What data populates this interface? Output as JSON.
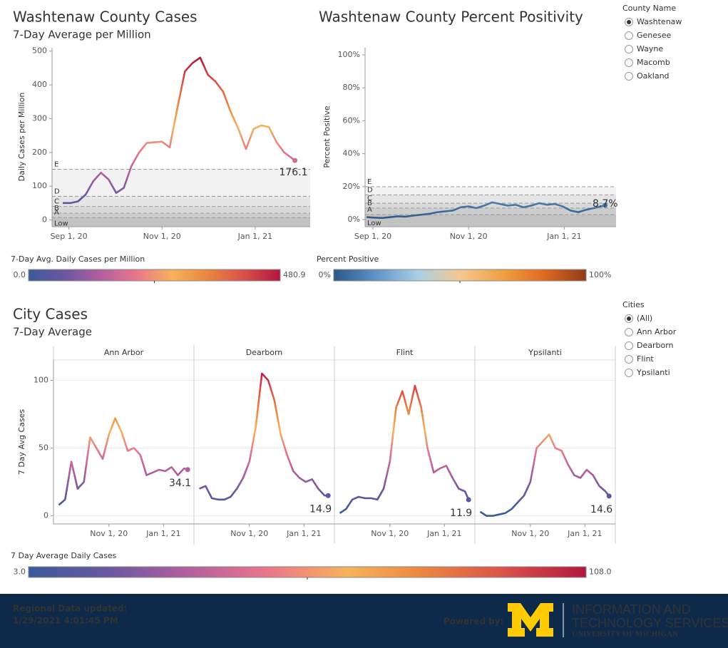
{
  "chart_data": [
    {
      "type": "line",
      "title": "Washtenaw County Cases",
      "subtitle": "7-Day Average per Million",
      "y_label": "Daily Cases per Million",
      "x": [
        "2020-08-28",
        "2020-09-02",
        "2020-09-07",
        "2020-09-12",
        "2020-09-17",
        "2020-09-22",
        "2020-09-27",
        "2020-10-02",
        "2020-10-07",
        "2020-10-12",
        "2020-10-17",
        "2020-10-22",
        "2020-10-27",
        "2020-11-01",
        "2020-11-06",
        "2020-11-11",
        "2020-11-16",
        "2020-11-21",
        "2020-11-26",
        "2020-12-01",
        "2020-12-06",
        "2020-12-11",
        "2020-12-16",
        "2020-12-21",
        "2020-12-26",
        "2020-12-31",
        "2021-01-05",
        "2021-01-10",
        "2021-01-15",
        "2021-01-20",
        "2021-01-27"
      ],
      "xlim": [
        "2020-08-21",
        "2021-02-06"
      ],
      "xticks": [
        {
          "value": "2020-09-01",
          "label": "Sep 1, 20"
        },
        {
          "value": "2020-11-01",
          "label": "Nov 1, 20"
        },
        {
          "value": "2021-01-01",
          "label": "Jan 1, 21"
        }
      ],
      "ylim": [
        -20,
        510
      ],
      "yticks": [
        0,
        100,
        200,
        300,
        400,
        500
      ],
      "series": [
        {
          "values": [
            50,
            50,
            55,
            75,
            115,
            140,
            120,
            80,
            95,
            160,
            200,
            228,
            230,
            232,
            215,
            330,
            440,
            465,
            480.9,
            430,
            410,
            380,
            320,
            270,
            210,
            270,
            280,
            275,
            230,
            200,
            176.1
          ]
        }
      ],
      "reference_bands": [
        {
          "value": 150,
          "label": "E"
        },
        {
          "value": 70,
          "label": "D"
        },
        {
          "value": 40,
          "label": "C"
        },
        {
          "value": 20,
          "label": "B"
        },
        {
          "value": 7,
          "label": "A"
        },
        {
          "value": 0,
          "label": "Low"
        }
      ],
      "color_title": "7-Day Avg. Daily Cases per Million",
      "color_range": [
        {
          "value": 0,
          "label": "0.0"
        },
        {
          "value": 480.9,
          "label": "480.9"
        }
      ],
      "colorscale": [
        "#3b5b9a",
        "#6b57a0",
        "#b25f9f",
        "#e9768a",
        "#f7b25a",
        "#ea8440",
        "#d9504a",
        "#b3163f"
      ]
    },
    {
      "type": "line",
      "title": "Washtenaw County Percent Positivity",
      "y_label": "Percent Positive",
      "x": [
        "2020-08-28",
        "2020-09-02",
        "2020-09-07",
        "2020-09-12",
        "2020-09-17",
        "2020-09-22",
        "2020-09-27",
        "2020-10-02",
        "2020-10-07",
        "2020-10-12",
        "2020-10-17",
        "2020-10-22",
        "2020-10-27",
        "2020-11-01",
        "2020-11-06",
        "2020-11-11",
        "2020-11-16",
        "2020-11-21",
        "2020-11-26",
        "2020-12-01",
        "2020-12-06",
        "2020-12-11",
        "2020-12-16",
        "2020-12-21",
        "2020-12-26",
        "2020-12-31",
        "2021-01-05",
        "2021-01-10",
        "2021-01-15",
        "2021-01-20",
        "2021-01-27"
      ],
      "xlim": [
        "2020-08-27",
        "2021-02-03"
      ],
      "xticks": [
        {
          "value": "2020-09-01",
          "label": "Sep 1, 20"
        },
        {
          "value": "2020-11-01",
          "label": "Nov 1, 20"
        },
        {
          "value": "2021-01-01",
          "label": "Jan 1, 21"
        }
      ],
      "ylim": [
        -4.3,
        104.3
      ],
      "yticks": [
        {
          "value": 0,
          "label": "0%"
        },
        {
          "value": 20,
          "label": "20%"
        },
        {
          "value": 40,
          "label": "40%"
        },
        {
          "value": 60,
          "label": "60%"
        },
        {
          "value": 80,
          "label": "80%"
        },
        {
          "value": 100,
          "label": "100%"
        }
      ],
      "series": [
        {
          "values": [
            1.5,
            1.2,
            1.0,
            1.5,
            2.0,
            1.8,
            2.5,
            3.0,
            3.5,
            4.5,
            5.0,
            5.5,
            7.5,
            8.0,
            7.0,
            8.5,
            10.5,
            9.5,
            8.5,
            9.0,
            7.5,
            8.5,
            10.0,
            9.0,
            9.5,
            8.0,
            5.5,
            4.5,
            6.0,
            7.0,
            8.7
          ],
          "value_labels": [
            null,
            null,
            null,
            null,
            null,
            null,
            null,
            null,
            null,
            null,
            null,
            null,
            null,
            null,
            null,
            null,
            null,
            null,
            null,
            null,
            null,
            null,
            null,
            null,
            null,
            null,
            null,
            null,
            null,
            null,
            "8.7%"
          ]
        }
      ],
      "reference_bands": [
        {
          "value": 20,
          "label": "E"
        },
        {
          "value": 15,
          "label": "D"
        },
        {
          "value": 10,
          "label": "C"
        },
        {
          "value": 7,
          "label": "B"
        },
        {
          "value": 3,
          "label": "A"
        },
        {
          "value": 0,
          "label": "Low"
        }
      ],
      "color_title": "Percent Positive",
      "color_range": [
        {
          "value": 0,
          "label": "0%"
        },
        {
          "value": 100,
          "label": "100%"
        }
      ],
      "colorscale": [
        "#2c5688",
        "#5f93c6",
        "#a9cfe6",
        "#f4c891",
        "#f1a143",
        "#e16a1f",
        "#8f3b1a"
      ]
    },
    {
      "type": "line",
      "facets": true,
      "title": "City Cases",
      "subtitle": "7-Day Average",
      "y_label": "7 Day Avg Cases",
      "x": [
        "2020-09-06",
        "2020-09-13",
        "2020-09-20",
        "2020-09-27",
        "2020-10-04",
        "2020-10-11",
        "2020-10-18",
        "2020-10-25",
        "2020-11-01",
        "2020-11-08",
        "2020-11-15",
        "2020-11-22",
        "2020-11-29",
        "2020-12-06",
        "2020-12-13",
        "2020-12-20",
        "2020-12-27",
        "2021-01-03",
        "2021-01-10",
        "2021-01-17",
        "2021-01-24",
        "2021-01-28"
      ],
      "xlim": [
        "2020-08-31",
        "2021-02-04"
      ],
      "xticks": [
        {
          "value": "2020-11-01",
          "label": "Nov 1, 20"
        },
        {
          "value": "2021-01-01",
          "label": "Jan 1, 21"
        }
      ],
      "ylim": [
        -6,
        115
      ],
      "yticks": [
        0,
        50,
        100
      ],
      "grid": true,
      "series": [
        {
          "name": "Ann Arbor",
          "values": [
            8,
            12,
            40,
            20,
            25,
            58,
            50,
            42,
            60,
            72,
            62,
            48,
            50,
            45,
            30,
            32,
            34,
            33,
            36,
            30,
            35,
            34.1
          ]
        },
        {
          "name": "Dearborn",
          "values": [
            20,
            22,
            13,
            12,
            12,
            14,
            20,
            28,
            40,
            65,
            105,
            100,
            85,
            60,
            45,
            33,
            28,
            25,
            27,
            20,
            15,
            14.9
          ]
        },
        {
          "name": "Flint",
          "values": [
            2,
            5,
            12,
            14,
            13,
            13,
            12,
            20,
            40,
            80,
            92,
            75,
            96,
            80,
            50,
            32,
            35,
            37,
            28,
            20,
            18,
            11.9
          ]
        },
        {
          "name": "Ypsilanti",
          "values": [
            3,
            0,
            0,
            1,
            2,
            5,
            10,
            15,
            25,
            50,
            55,
            60,
            50,
            48,
            38,
            30,
            28,
            34,
            30,
            22,
            18,
            14.6
          ]
        }
      ],
      "color_title": "7 Day Average Daily Cases",
      "color_range": [
        {
          "value": 3,
          "label": "3.0"
        },
        {
          "value": 108,
          "label": "108.0"
        }
      ],
      "colorscale": [
        "#3b5b9a",
        "#6b57a0",
        "#b25f9f",
        "#e9768a",
        "#f7b25a",
        "#ea8440",
        "#d9504a",
        "#b3163f"
      ]
    }
  ],
  "filters": [
    {
      "title": "County Name",
      "options": [
        "Washtenaw",
        "Genesee",
        "Wayne",
        "Macomb",
        "Oakland"
      ],
      "selected": 0
    },
    {
      "title": "Cities",
      "options": [
        "(All)",
        "Ann Arbor",
        "Dearborn",
        "Flint",
        "Ypsilanti"
      ],
      "selected": 0
    }
  ],
  "footer": {
    "updated_label": "Regional Data updated:",
    "updated_time": "1/29/2021 4:01:45 PM",
    "powered_by": "Powered by:",
    "logo_line1": "INFORMATION AND",
    "logo_line2": "TECHNOLOGY SERVICES",
    "logo_line3": "UNIVERSITY OF MICHIGAN"
  }
}
